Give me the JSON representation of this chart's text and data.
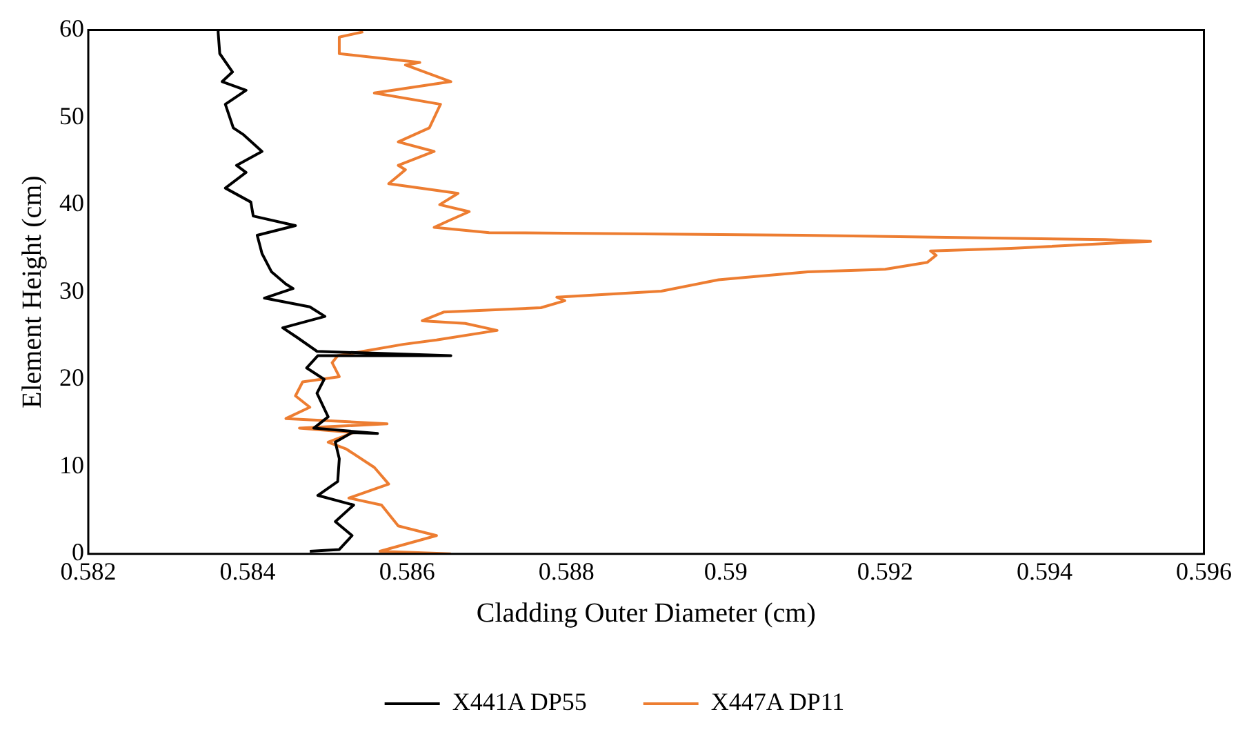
{
  "chart_data": {
    "type": "line",
    "xlabel": "Cladding Outer Diameter (cm)",
    "ylabel": "Element Height (cm)",
    "xlim": [
      0.582,
      0.596
    ],
    "xticks": [
      0.582,
      0.584,
      0.586,
      0.588,
      0.59,
      0.592,
      0.594,
      0.596
    ],
    "ylim": [
      0,
      60
    ],
    "yticks": [
      0,
      10,
      20,
      30,
      40,
      50,
      60
    ],
    "grid": false,
    "legend": "bottom",
    "marker": "none",
    "series": [
      {
        "name": "X441A DP55",
        "color": "#000000",
        "x": [
          0.58478,
          0.58515,
          0.58531,
          0.5851,
          0.58533,
          0.58488,
          0.58513,
          0.58515,
          0.5851,
          0.58531,
          0.58563,
          0.58483,
          0.58501,
          0.58487,
          0.58496,
          0.58474,
          0.58488,
          0.58655,
          0.58487,
          0.58462,
          0.58444,
          0.58497,
          0.58478,
          0.58421,
          0.58457,
          0.58448,
          0.5843,
          0.58418,
          0.58412,
          0.5846,
          0.58407,
          0.58404,
          0.58372,
          0.58398,
          0.58386,
          0.58418,
          0.58395,
          0.58382,
          0.58372,
          0.58398,
          0.58368,
          0.58381,
          0.58365,
          0.58363,
          0.58363
        ],
        "values": [
          0.3,
          0.5,
          2.1,
          3.7,
          5.6,
          6.7,
          8.3,
          10.9,
          12.8,
          13.9,
          13.8,
          14.4,
          15.7,
          18.4,
          20.0,
          21.3,
          22.7,
          22.7,
          23.2,
          24.8,
          25.9,
          27.2,
          28.3,
          29.3,
          30.4,
          30.9,
          32.3,
          34.4,
          36.5,
          37.6,
          38.7,
          40.3,
          41.9,
          43.7,
          44.5,
          46.1,
          48.0,
          48.8,
          51.5,
          53.1,
          54.1,
          55.2,
          57.3,
          59.7,
          60
        ]
      },
      {
        "name": "X447A DP11",
        "color": "#ed7d31",
        "x": [
          0.58655,
          0.58566,
          0.58637,
          0.58589,
          0.58568,
          0.58527,
          0.58577,
          0.58559,
          0.58524,
          0.58501,
          0.58533,
          0.58465,
          0.58575,
          0.58448,
          0.58478,
          0.5846,
          0.58469,
          0.58515,
          0.58506,
          0.58513,
          0.58595,
          0.58637,
          0.58713,
          0.58673,
          0.58619,
          0.58646,
          0.58768,
          0.58798,
          0.58788,
          0.58919,
          0.58991,
          0.59103,
          0.592,
          0.59253,
          0.59264,
          0.59257,
          0.59358,
          0.59533,
          0.59476,
          0.59096,
          0.58703,
          0.58634,
          0.58653,
          0.58678,
          0.58641,
          0.58664,
          0.58577,
          0.58598,
          0.58589,
          0.58634,
          0.58589,
          0.58628,
          0.58642,
          0.58559,
          0.58655,
          0.58598,
          0.58616,
          0.58515,
          0.58515,
          0.58545
        ],
        "values": [
          0,
          0.3,
          2.1,
          3.2,
          5.6,
          6.4,
          8.0,
          9.9,
          12.0,
          12.8,
          13.9,
          14.4,
          14.9,
          15.5,
          16.8,
          18.1,
          19.7,
          20.3,
          21.9,
          22.7,
          24.0,
          24.5,
          25.6,
          26.4,
          26.7,
          27.7,
          28.2,
          29.0,
          29.4,
          30.1,
          31.4,
          32.3,
          32.6,
          33.4,
          34.2,
          34.7,
          35.0,
          35.8,
          36.0,
          36.5,
          36.8,
          37.4,
          38.2,
          39.2,
          40.0,
          41.3,
          42.4,
          44.0,
          44.5,
          46.1,
          47.2,
          48.8,
          51.5,
          52.8,
          54.1,
          56.0,
          56.3,
          57.3,
          59.2,
          59.8
        ]
      }
    ]
  }
}
